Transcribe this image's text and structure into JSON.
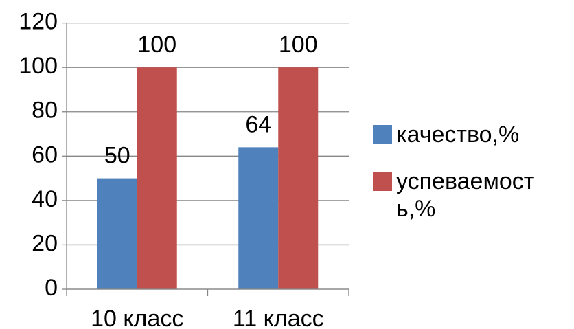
{
  "chart_data": {
    "type": "bar",
    "categories": [
      "10 класс",
      "11 класс"
    ],
    "series": [
      {
        "name": "качество,%",
        "color": "#4f81bd",
        "values": [
          50,
          64
        ]
      },
      {
        "name": "успеваемость,%",
        "color": "#c0504d",
        "values": [
          100,
          100
        ]
      }
    ],
    "ylim": [
      0,
      120
    ],
    "yticks": [
      0,
      20,
      40,
      60,
      80,
      100,
      120
    ],
    "grid": true,
    "legend": "right"
  }
}
